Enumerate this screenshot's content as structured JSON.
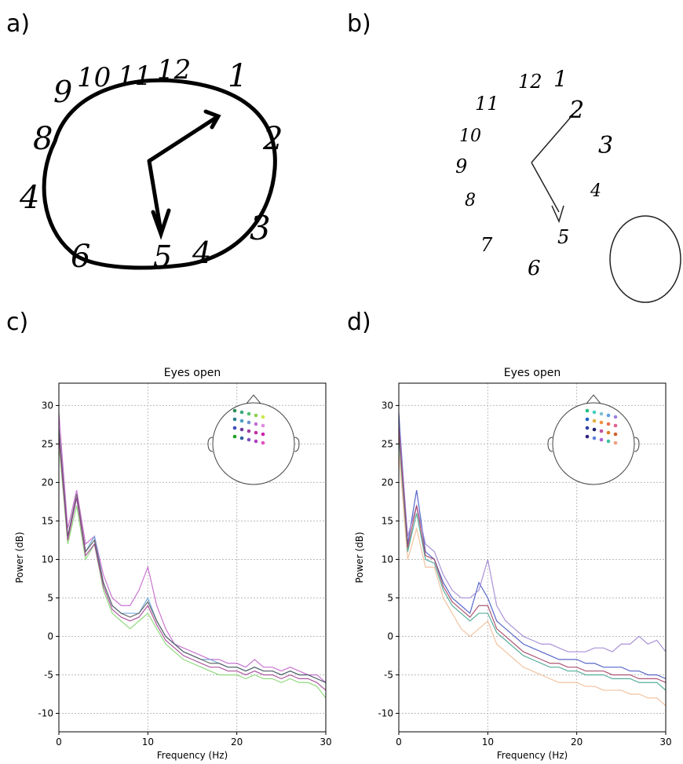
{
  "panels": [
    "a)",
    "b)",
    "c)",
    "d)"
  ],
  "clocks": [
    {
      "numerals": [
        "8",
        "9",
        "10",
        "11",
        "12",
        "1",
        "2",
        "3",
        "4",
        "5",
        "6",
        "4"
      ]
    },
    {
      "numerals": [
        "11",
        "12",
        "1",
        "2",
        "3",
        "10",
        "9",
        "8",
        "7",
        "6",
        "5",
        "4"
      ]
    }
  ],
  "chart_data": [
    {
      "type": "line",
      "title": "Eyes open",
      "x_label": "Frequency (Hz)",
      "y_label": "Power (dB)",
      "xlim": [
        0,
        30
      ],
      "ylim": [
        -12.4,
        32.9
      ],
      "xticks": [
        0,
        10,
        20,
        30
      ],
      "yticks": [
        -10,
        -5,
        0,
        5,
        10,
        15,
        20,
        25,
        30
      ],
      "grid": true,
      "x": [
        0,
        1,
        2,
        3,
        4,
        5,
        6,
        7,
        8,
        9,
        10,
        11,
        12,
        13,
        14,
        15,
        16,
        17,
        18,
        19,
        20,
        21,
        22,
        23,
        24,
        25,
        26,
        27,
        28,
        29,
        30
      ],
      "series": [
        {
          "color": "#c05ac8",
          "values": [
            29,
            14,
            19,
            12,
            13,
            8,
            5,
            4,
            4,
            6,
            9,
            4,
            1,
            -1,
            -1.5,
            -2,
            -2.5,
            -3,
            -3,
            -3.5,
            -3.5,
            -4,
            -3,
            -4,
            -4,
            -4.5,
            -4,
            -4.5,
            -5,
            -5,
            -6
          ]
        },
        {
          "color": "#7fd36a",
          "values": [
            25,
            12,
            17,
            10,
            12,
            6,
            3,
            2,
            1,
            2,
            3,
            1,
            -1,
            -2,
            -3,
            -3.5,
            -4,
            -4.5,
            -5,
            -5,
            -5,
            -5.5,
            -5,
            -5.5,
            -5.5,
            -6,
            -5.5,
            -6,
            -6,
            -6.5,
            -8
          ]
        },
        {
          "color": "#5a9fd6",
          "values": [
            27,
            13,
            18,
            11,
            13,
            7,
            4,
            3,
            3,
            3,
            5,
            2,
            0,
            -1,
            -2,
            -2.5,
            -3,
            -3,
            -3.5,
            -4,
            -4,
            -4.5,
            -4,
            -4.5,
            -4.5,
            -5,
            -4.5,
            -5,
            -5,
            -5.5,
            -6
          ]
        },
        {
          "color": "#555555",
          "values": [
            27,
            13,
            18.5,
            11,
            12.5,
            7,
            4,
            3,
            2.5,
            3,
            4.5,
            2,
            0,
            -1,
            -2,
            -2.5,
            -3,
            -3.5,
            -3.5,
            -4,
            -4,
            -4.5,
            -4,
            -4.5,
            -4.5,
            -5,
            -4.5,
            -5,
            -5,
            -5.5,
            -6
          ]
        },
        {
          "color": "#a0388f",
          "values": [
            26,
            12.5,
            18,
            10.5,
            12,
            6.5,
            3.5,
            2.5,
            2,
            2.5,
            4,
            1.5,
            -0.5,
            -1.5,
            -2.5,
            -3,
            -3.5,
            -4,
            -4,
            -4.5,
            -4.5,
            -5,
            -4.5,
            -5,
            -5,
            -5.5,
            -5,
            -5.5,
            -5.5,
            -6,
            -7
          ]
        }
      ]
    },
    {
      "type": "line",
      "title": "Eyes open",
      "x_label": "Frequency (Hz)",
      "y_label": "Power (dB)",
      "xlim": [
        0,
        30
      ],
      "ylim": [
        -12.4,
        32.9
      ],
      "xticks": [
        0,
        10,
        20,
        30
      ],
      "yticks": [
        -10,
        -5,
        0,
        5,
        10,
        15,
        20,
        25,
        30
      ],
      "grid": true,
      "x": [
        0,
        1,
        2,
        3,
        4,
        5,
        6,
        7,
        8,
        9,
        10,
        11,
        12,
        13,
        14,
        15,
        16,
        17,
        18,
        19,
        20,
        21,
        22,
        23,
        24,
        25,
        26,
        27,
        28,
        29,
        30
      ],
      "series": [
        {
          "color": "#3b4cc0",
          "values": [
            29,
            12,
            19,
            11,
            10,
            7,
            5,
            4,
            3,
            7,
            5,
            2,
            1,
            0,
            -1,
            -1.5,
            -2,
            -2.5,
            -3,
            -3,
            -3,
            -3.5,
            -3.5,
            -4,
            -4,
            -4,
            -4.5,
            -4.5,
            -5,
            -5,
            -5.5
          ]
        },
        {
          "color": "#9a7fd0",
          "values": [
            28,
            13,
            17,
            12,
            11,
            8,
            6,
            5,
            5,
            6,
            10,
            4,
            2,
            1,
            0,
            -0.5,
            -1,
            -1,
            -1.5,
            -2,
            -2,
            -2,
            -1.5,
            -1.5,
            -2,
            -1,
            -1,
            0,
            -1,
            -0.5,
            -2
          ]
        },
        {
          "color": "#f0b890",
          "values": [
            24,
            10,
            14,
            9,
            9,
            5,
            3,
            1,
            0,
            1,
            2,
            -1,
            -2,
            -3,
            -4,
            -4.5,
            -5,
            -5.5,
            -6,
            -6,
            -6,
            -6.5,
            -6.5,
            -7,
            -7,
            -7,
            -7.5,
            -7.5,
            -8,
            -8,
            -9
          ]
        },
        {
          "color": "#3aa08a",
          "values": [
            26,
            11,
            16,
            10,
            9.5,
            6,
            4,
            3,
            2,
            3,
            3,
            0.5,
            -0.5,
            -1.5,
            -2.5,
            -3,
            -3.5,
            -4,
            -4,
            -4.5,
            -4.5,
            -5,
            -5,
            -5,
            -5.5,
            -5.5,
            -5.5,
            -6,
            -6,
            -6,
            -7
          ]
        },
        {
          "color": "#a0385a",
          "values": [
            27,
            11.5,
            17,
            10.5,
            10,
            6.5,
            4.5,
            3.5,
            2.5,
            4,
            4,
            1,
            0,
            -1,
            -2,
            -2.5,
            -3,
            -3.5,
            -3.5,
            -4,
            -4,
            -4.5,
            -4.5,
            -4.5,
            -5,
            -5,
            -5,
            -5.5,
            -5.5,
            -5.5,
            -6
          ]
        }
      ]
    }
  ]
}
